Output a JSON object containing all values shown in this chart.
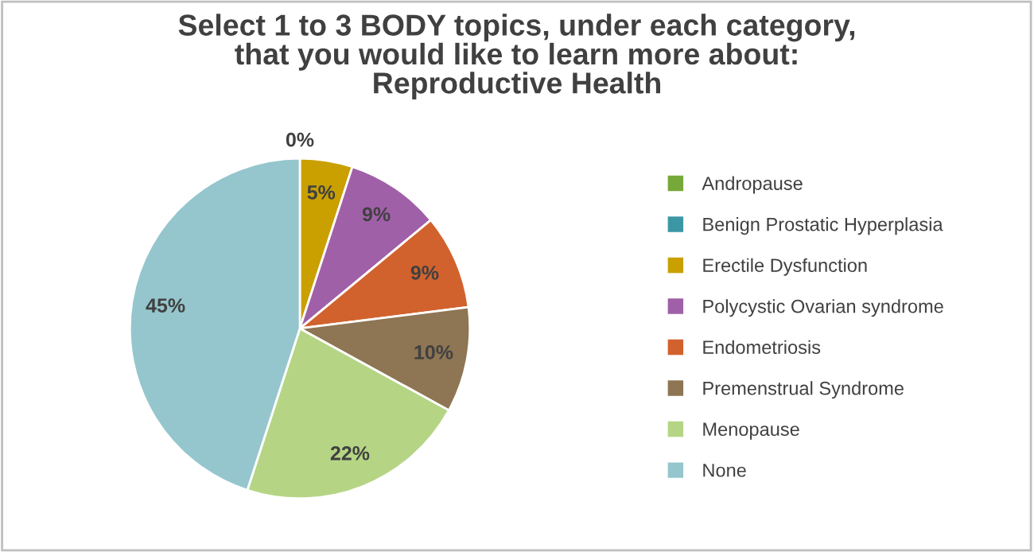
{
  "chart_data": {
    "type": "pie",
    "title": "Select 1 to 3 BODY topics, under each category,\nthat you would like to learn more about:\nReproductive Health",
    "categories": [
      "Andropause",
      "Benign Prostatic Hyperplasia",
      "Erectile Dysfunction",
      "Polycystic Ovarian syndrome",
      "Endometriosis",
      "Premenstrual Syndrome",
      "Menopause",
      "None"
    ],
    "values": [
      0,
      0,
      5,
      9,
      9,
      10,
      22,
      45
    ],
    "value_labels": [
      "0%",
      null,
      "5%",
      "9%",
      "9%",
      "10%",
      "22%",
      "45%"
    ],
    "colors": [
      "#77a83a",
      "#3b97a3",
      "#c9a000",
      "#a060a8",
      "#d2622d",
      "#8e7553",
      "#b5d585",
      "#95c6cd"
    ],
    "legend": "right"
  }
}
